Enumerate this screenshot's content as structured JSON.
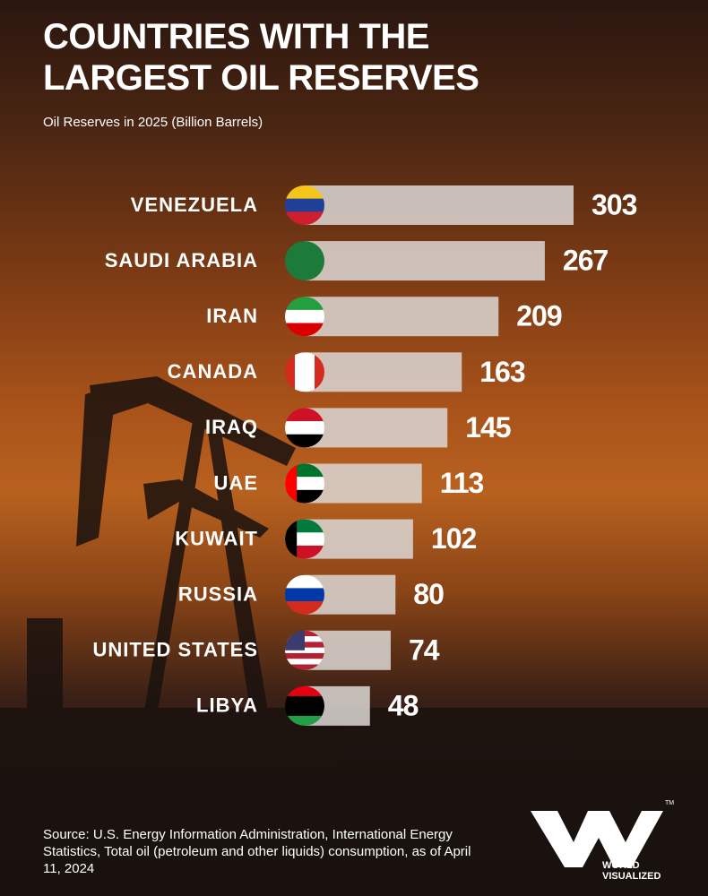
{
  "chart_data": {
    "type": "hbar",
    "title": "COUNTRIES WITH THE LARGEST OIL RESERVES",
    "subtitle": "Oil Reserves in 2025 (Billion Barrels)",
    "categories": [
      "VENEZUELA",
      "SAUDI ARABIA",
      "IRAN",
      "CANADA",
      "IRAQ",
      "UAE",
      "KUWAIT",
      "RUSSIA",
      "UNITED STATES",
      "LIBYA"
    ],
    "values": [
      303,
      267,
      209,
      163,
      145,
      113,
      102,
      80,
      74,
      48
    ],
    "color": "#d8d3cf",
    "source": "Source: U.S. Energy Information Administration, International Energy Statistics, Total oil (petroleum and other liquids) consumption, as of April 11, 2024",
    "brand": "WORLD VISUALIZED",
    "brand_mark": "TM"
  }
}
